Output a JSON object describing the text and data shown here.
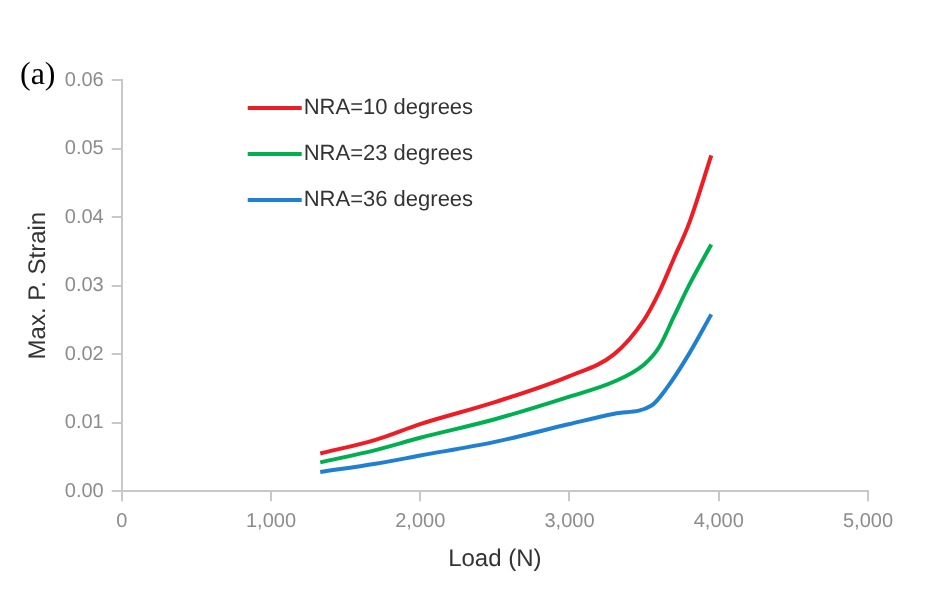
{
  "chart_data": {
    "type": "line",
    "xlabel": "Load (N)",
    "ylabel": "Max. P. Strain",
    "annotations": [
      "(a)"
    ],
    "xlim": [
      0,
      5000
    ],
    "xticks": [
      {
        "value": 0,
        "label": "0"
      },
      {
        "value": 1000,
        "label": "1,000"
      },
      {
        "value": 2000,
        "label": "2,000"
      },
      {
        "value": 3000,
        "label": "3,000"
      },
      {
        "value": 4000,
        "label": "4,000"
      },
      {
        "value": 5000,
        "label": "5,000"
      }
    ],
    "ylim": [
      0,
      0.06
    ],
    "yticks": [
      {
        "value": 0,
        "label": "0.00"
      },
      {
        "value": 0.01,
        "label": "0.01"
      },
      {
        "value": 0.02,
        "label": "0.02"
      },
      {
        "value": 0.03,
        "label": "0.03"
      },
      {
        "value": 0.04,
        "label": "0.04"
      },
      {
        "value": 0.05,
        "label": "0.05"
      },
      {
        "value": 0.06,
        "label": "0.06"
      }
    ],
    "grid": false,
    "legend": "top left",
    "marker": "none",
    "line_style": "solid",
    "series": [
      {
        "name": "NRA=10 degrees",
        "color": "#ee1c25",
        "x": [
          1330,
          1700,
          2000,
          2500,
          3000,
          3300,
          3500,
          3600,
          3700,
          3800,
          3950
        ],
        "values": [
          0.0055,
          0.0075,
          0.0098,
          0.013,
          0.0168,
          0.02,
          0.025,
          0.029,
          0.034,
          0.039,
          0.049
        ]
      },
      {
        "name": "NRA=23 degrees",
        "color": "#00b050",
        "x": [
          1330,
          1700,
          2000,
          2500,
          3000,
          3300,
          3500,
          3600,
          3700,
          3800,
          3950
        ],
        "values": [
          0.0042,
          0.006,
          0.0078,
          0.0105,
          0.0138,
          0.016,
          0.0185,
          0.021,
          0.0255,
          0.03,
          0.036
        ]
      },
      {
        "name": "NRA=36 degrees",
        "color": "#1f7fd0",
        "x": [
          1330,
          1700,
          2000,
          2500,
          3000,
          3300,
          3550,
          3650,
          3800,
          3950
        ],
        "values": [
          0.0028,
          0.004,
          0.0052,
          0.0072,
          0.0098,
          0.0113,
          0.0125,
          0.015,
          0.02,
          0.0258
        ]
      }
    ]
  }
}
